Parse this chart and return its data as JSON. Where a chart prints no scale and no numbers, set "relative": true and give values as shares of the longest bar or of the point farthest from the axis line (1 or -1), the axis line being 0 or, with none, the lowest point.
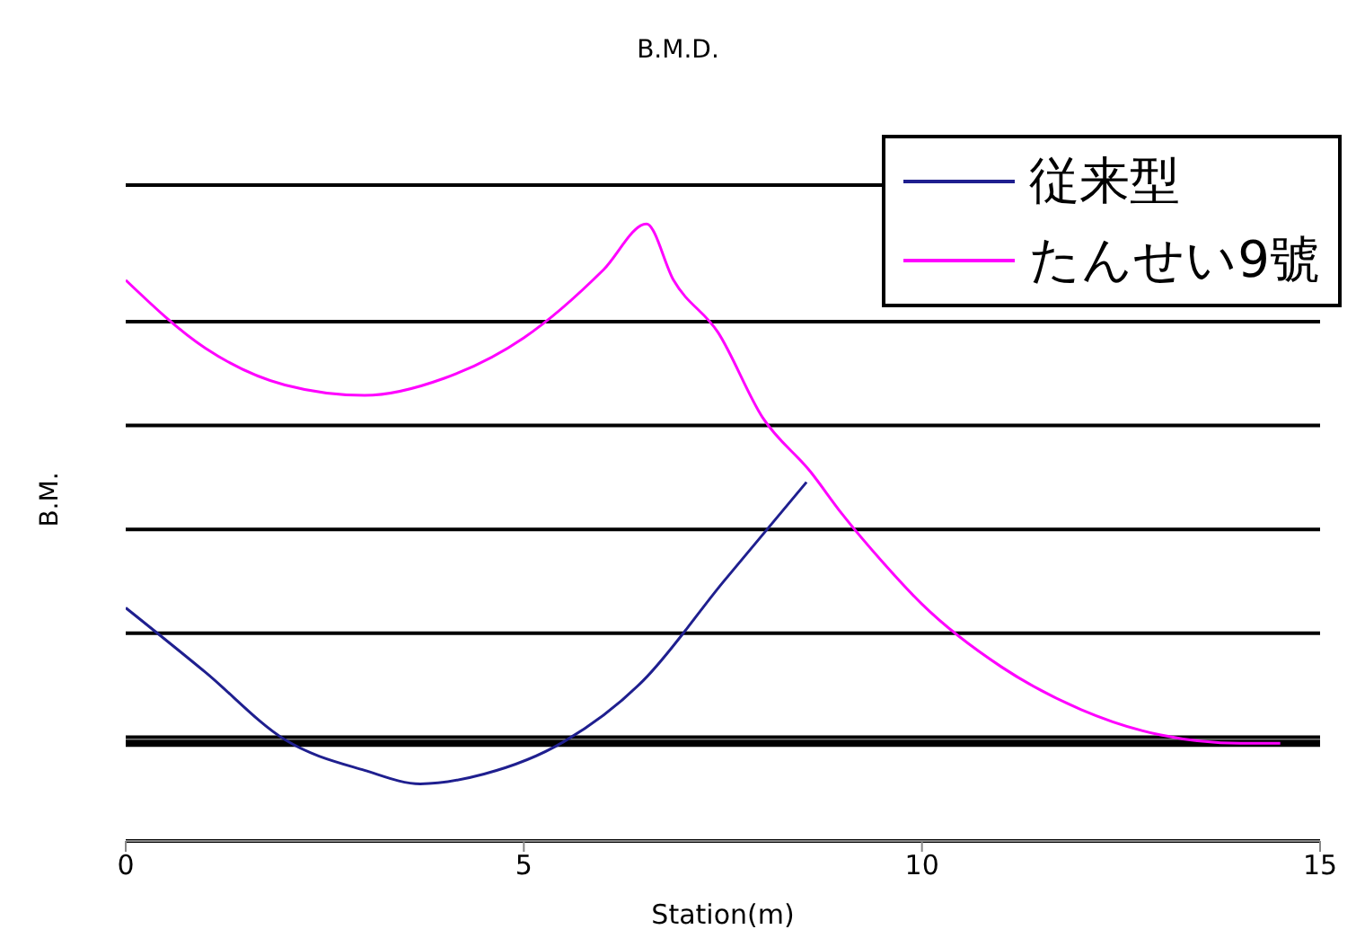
{
  "chart_data": {
    "type": "line",
    "title": "B.M.D.",
    "xlabel": "Station(m)",
    "ylabel": "B.M.",
    "relative": true,
    "xlim": [
      0,
      15
    ],
    "xticks": [
      0,
      5,
      10,
      15
    ],
    "grid": "y",
    "legend": "top right",
    "marker": "none",
    "line_style": "solid",
    "series": [
      {
        "name": "従来型",
        "color": "#1f1f8f",
        "x": [
          0,
          1,
          2,
          3,
          3.7,
          4.5,
          5.5,
          6.5,
          7.5,
          8.55
        ],
        "values": [
          0.261,
          0.137,
          0.007,
          -0.052,
          -0.078,
          -0.059,
          0.003,
          0.121,
          0.31,
          0.503
        ]
      },
      {
        "name": "たんせい9號",
        "color": "#ff00ff",
        "x": [
          0,
          1,
          2,
          3,
          4,
          5,
          6,
          6.54,
          6.88,
          7.44,
          8,
          8.6,
          9,
          9.5,
          10,
          11,
          12,
          13,
          14,
          14.5
        ],
        "values": [
          0.892,
          0.761,
          0.69,
          0.67,
          0.703,
          0.781,
          0.912,
          1,
          0.892,
          0.791,
          0.627,
          0.523,
          0.441,
          0.35,
          0.268,
          0.147,
          0.065,
          0.016,
          0,
          0
        ]
      }
    ]
  }
}
